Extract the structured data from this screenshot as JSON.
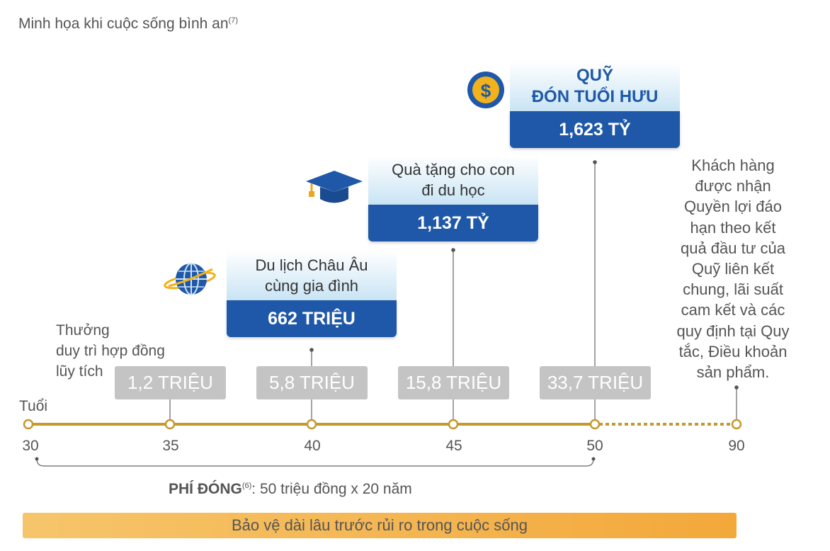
{
  "title": {
    "text": "Minh họa khi cuộc sống bình an",
    "note": "(7)"
  },
  "milestones": [
    {
      "label_line1": "Du lịch Châu Âu",
      "label_line2": "cùng gia đình",
      "value": "662 TRIỆU",
      "icon": "globe-icon"
    },
    {
      "label_line1": "Quà tặng cho con",
      "label_line2": "đi du học",
      "value": "1,137 TỶ",
      "icon": "graduation-cap-icon"
    },
    {
      "label_line1": "QUỸ",
      "label_line2": "ĐÓN TUỔI HƯU",
      "value": "1,623 TỶ",
      "icon": "dollar-coin-icon"
    }
  ],
  "bonus": {
    "label_line1": "Thưởng",
    "label_line2": "duy trì hợp đồng",
    "label_line3": "lũy tích",
    "values": [
      "1,2 TRIỆU",
      "5,8 TRIỆU",
      "15,8 TRIỆU",
      "33,7 TRIỆU"
    ]
  },
  "axis": {
    "label": "Tuổi",
    "ticks": [
      "30",
      "35",
      "40",
      "45",
      "50",
      "90"
    ]
  },
  "side_note": {
    "lines": [
      "Khách hàng",
      "được nhận",
      "Quyền lợi đáo",
      "hạn theo kết",
      "quả đầu tư của",
      "Quỹ liên kết",
      "chung, lãi suất",
      "cam kết và các",
      "quy định tại Quy",
      "tắc, Điều khoản",
      "sản phẩm."
    ]
  },
  "premium": {
    "label": "PHÍ ĐÓNG",
    "note": "(6)",
    "text": ": 50 triệu đồng x 20 năm"
  },
  "footer": {
    "text": "Bảo vệ dài lâu trước rủi ro trong cuộc sống"
  },
  "colors": {
    "timeline": "#c49a2c",
    "card_blue": "#1f58a8",
    "pill_gray": "#c4c4c4",
    "footer_orange": "#f3a83a"
  }
}
